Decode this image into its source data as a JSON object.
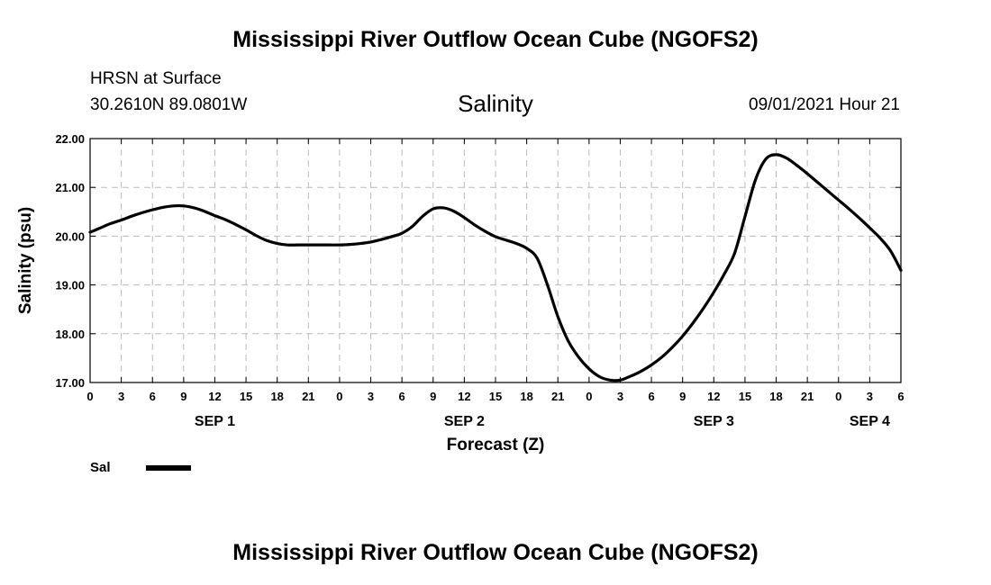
{
  "header": {
    "title": "Mississippi River Outflow Ocean Cube (NGOFS2)",
    "station": "HRSN at Surface",
    "coords": "30.2610N  89.0801W",
    "datetime": "09/01/2021 Hour 21"
  },
  "footer": {
    "title": "Mississippi River Outflow Ocean Cube (NGOFS2)"
  },
  "colors": {
    "line": "#000000",
    "grid": "#bbbbbb",
    "axis": "#000000"
  },
  "chart_data": {
    "type": "line",
    "title": "Salinity",
    "xlabel": "Forecast (Z)",
    "ylabel": "Salinity (psu)",
    "xlim": [
      0,
      78
    ],
    "ylim": [
      17.0,
      22.0
    ],
    "grid": true,
    "x_ticks": [
      0,
      3,
      6,
      9,
      12,
      15,
      18,
      21,
      24,
      27,
      30,
      33,
      36,
      39,
      42,
      45,
      48,
      51,
      54,
      57,
      60,
      63,
      66,
      69,
      72,
      75,
      78
    ],
    "x_tick_labels": [
      "0",
      "3",
      "6",
      "9",
      "12",
      "15",
      "18",
      "21",
      "0",
      "3",
      "6",
      "9",
      "12",
      "15",
      "18",
      "21",
      "0",
      "3",
      "6",
      "9",
      "12",
      "15",
      "18",
      "21",
      "0",
      "3",
      "6"
    ],
    "y_ticks": [
      17.0,
      18.0,
      19.0,
      20.0,
      21.0,
      22.0
    ],
    "y_tick_labels": [
      "17.00",
      "18.00",
      "19.00",
      "20.00",
      "21.00",
      "22.00"
    ],
    "day_labels": [
      {
        "label": "SEP 1",
        "x": 12
      },
      {
        "label": "SEP 2",
        "x": 36
      },
      {
        "label": "SEP 3",
        "x": 60
      },
      {
        "label": "SEP 4",
        "x": 75
      }
    ],
    "legend": [
      {
        "label": "Sal"
      }
    ],
    "series": [
      {
        "name": "Sal",
        "x": [
          0,
          1,
          2,
          3,
          4,
          5,
          6,
          7,
          8,
          9,
          10,
          11,
          12,
          13,
          14,
          15,
          16,
          17,
          18,
          19,
          20,
          21,
          22,
          23,
          24,
          25,
          26,
          27,
          28,
          29,
          30,
          31,
          32,
          33,
          34,
          35,
          36,
          37,
          38,
          39,
          40,
          41,
          42,
          43,
          44,
          45,
          46,
          47,
          48,
          49,
          50,
          51,
          52,
          53,
          54,
          55,
          56,
          57,
          58,
          59,
          60,
          61,
          62,
          63,
          64,
          65,
          66,
          67,
          68,
          69,
          70,
          71,
          72,
          73,
          74,
          75,
          76,
          77,
          78
        ],
        "values": [
          20.08,
          20.17,
          20.26,
          20.33,
          20.41,
          20.48,
          20.54,
          20.59,
          20.62,
          20.62,
          20.58,
          20.51,
          20.42,
          20.34,
          20.24,
          20.13,
          20.01,
          19.91,
          19.85,
          19.82,
          19.82,
          19.82,
          19.82,
          19.82,
          19.82,
          19.83,
          19.85,
          19.88,
          19.93,
          19.99,
          20.06,
          20.2,
          20.41,
          20.56,
          20.58,
          20.51,
          20.38,
          20.23,
          20.1,
          19.99,
          19.92,
          19.85,
          19.75,
          19.55,
          19.0,
          18.35,
          17.85,
          17.52,
          17.28,
          17.12,
          17.05,
          17.05,
          17.13,
          17.23,
          17.36,
          17.52,
          17.72,
          17.95,
          18.22,
          18.52,
          18.85,
          19.22,
          19.65,
          20.4,
          21.15,
          21.58,
          21.67,
          21.6,
          21.45,
          21.28,
          21.1,
          20.92,
          20.74,
          20.56,
          20.37,
          20.17,
          19.96,
          19.7,
          19.3
        ]
      }
    ]
  }
}
